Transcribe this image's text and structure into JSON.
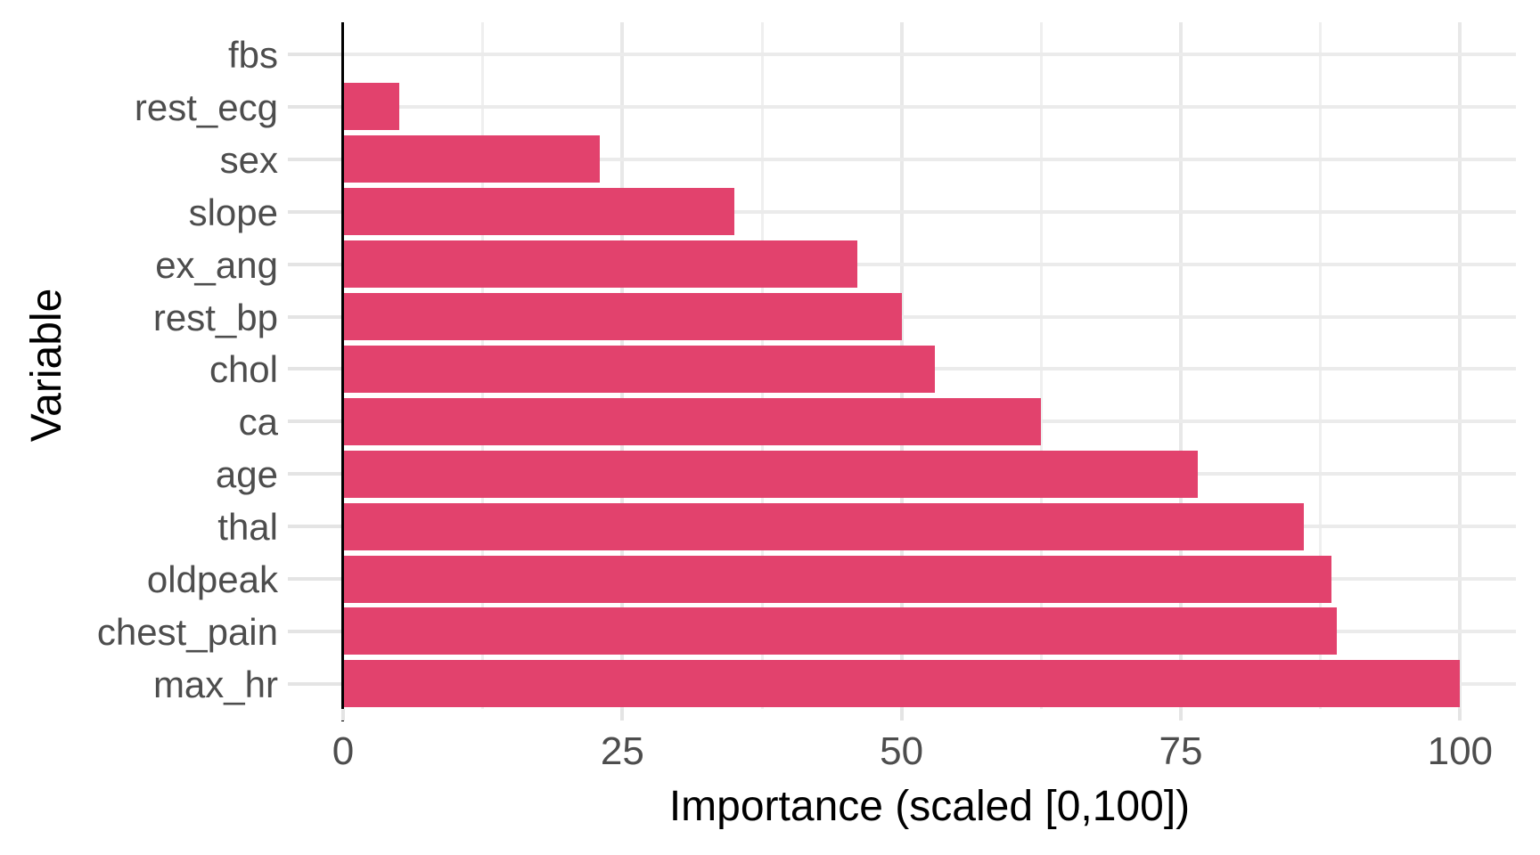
{
  "chart_data": {
    "type": "bar",
    "orientation": "horizontal",
    "title": "",
    "xlabel": "Importance (scaled [0,100])",
    "ylabel": "Variable",
    "categories": [
      "fbs",
      "rest_ecg",
      "sex",
      "slope",
      "ex_ang",
      "rest_bp",
      "chol",
      "ca",
      "age",
      "thal",
      "oldpeak",
      "chest_pain",
      "max_hr"
    ],
    "values": [
      0,
      5,
      23,
      35,
      46,
      50,
      53,
      62.5,
      76.5,
      86,
      88.5,
      89,
      100
    ],
    "x_ticks": [
      0,
      25,
      50,
      75,
      100
    ],
    "x_minor_gridlines": [
      12.5,
      37.5,
      62.5,
      87.5
    ],
    "xlim": [
      0,
      105
    ],
    "grid": "on",
    "legend_position": "none",
    "colors": {
      "bar": "#E2426D",
      "grid_major": "#E8E8E8",
      "grid_minor": "#EFEFEF",
      "axis_line": "#000000",
      "tick_mark": "#E4E4E4",
      "tick_label": "#4D4D4D",
      "axis_title": "#000000",
      "background": "#FFFFFF"
    }
  }
}
